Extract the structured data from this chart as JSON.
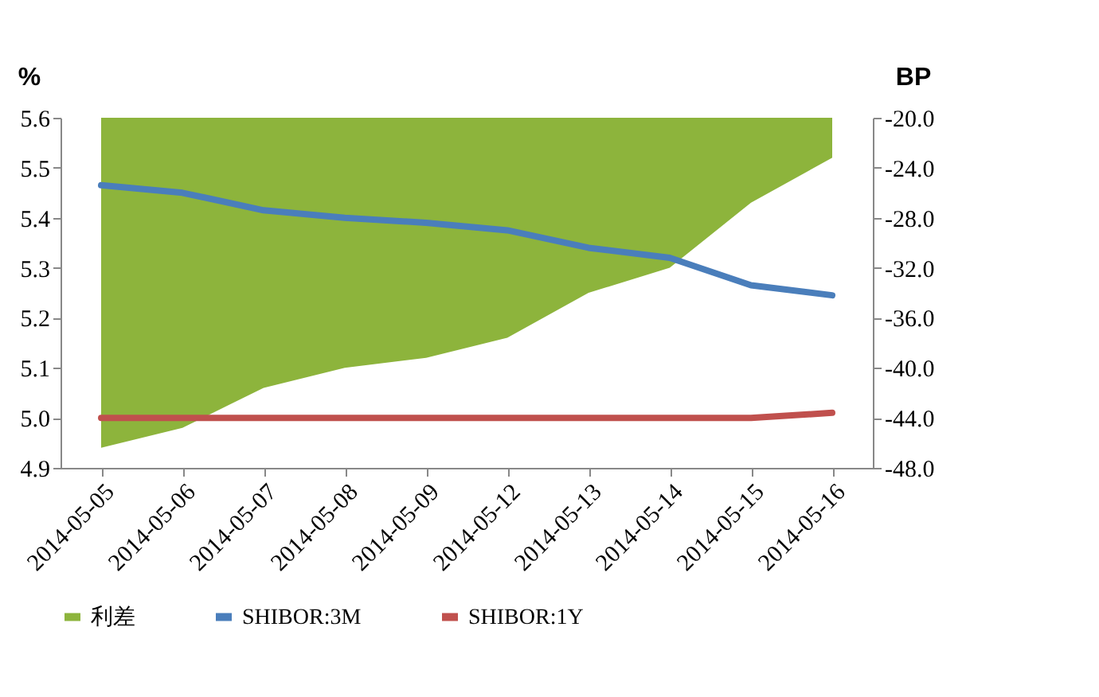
{
  "chart_data": {
    "type": "line",
    "categories": [
      "2014-05-05",
      "2014-05-06",
      "2014-05-07",
      "2014-05-08",
      "2014-05-09",
      "2014-05-12",
      "2014-05-13",
      "2014-05-14",
      "2014-05-15",
      "2014-05-16"
    ],
    "series": [
      {
        "name": "利差",
        "type": "area",
        "axis": "y2",
        "color": "#8db43c",
        "values": [
          -46.4,
          -44.8,
          -41.6,
          -40.0,
          -39.2,
          -37.6,
          -34.0,
          -32.0,
          -26.8,
          -23.2
        ]
      },
      {
        "name": "SHIBOR:3M",
        "color": "#4a7ebb",
        "values": [
          5.465,
          5.45,
          5.415,
          5.4,
          5.39,
          5.375,
          5.34,
          5.32,
          5.265,
          5.245
        ]
      },
      {
        "name": "SHIBOR:1Y",
        "color": "#c0504d",
        "values": [
          5.0,
          5.0,
          5.0,
          5.0,
          5.0,
          5.0,
          5.0,
          5.0,
          5.0,
          5.01
        ]
      }
    ],
    "ylabel": "%",
    "y2label": "BP",
    "ylim": [
      4.9,
      5.6
    ],
    "yticks": [
      {
        "value": 4.9,
        "label": "4.9"
      },
      {
        "value": 5.0,
        "label": "5.0"
      },
      {
        "value": 5.1,
        "label": "5.1"
      },
      {
        "value": 5.2,
        "label": "5.2"
      },
      {
        "value": 5.3,
        "label": "5.3"
      },
      {
        "value": 5.4,
        "label": "5.4"
      },
      {
        "value": 5.5,
        "label": "5.5"
      },
      {
        "value": 5.6,
        "label": "5.6"
      }
    ],
    "y2lim": [
      -48,
      -20
    ],
    "y2ticks": [
      {
        "value": -48,
        "label": "-48.0"
      },
      {
        "value": -44,
        "label": "-44.0"
      },
      {
        "value": -40,
        "label": "-40.0"
      },
      {
        "value": -36,
        "label": "-36.0"
      },
      {
        "value": -32,
        "label": "-32.0"
      },
      {
        "value": -28,
        "label": "-28.0"
      },
      {
        "value": -24,
        "label": "-24.0"
      },
      {
        "value": -20,
        "label": "-20.0"
      }
    ],
    "grid": false,
    "legend": "bottom",
    "line_style": "solid",
    "marker": "none"
  }
}
